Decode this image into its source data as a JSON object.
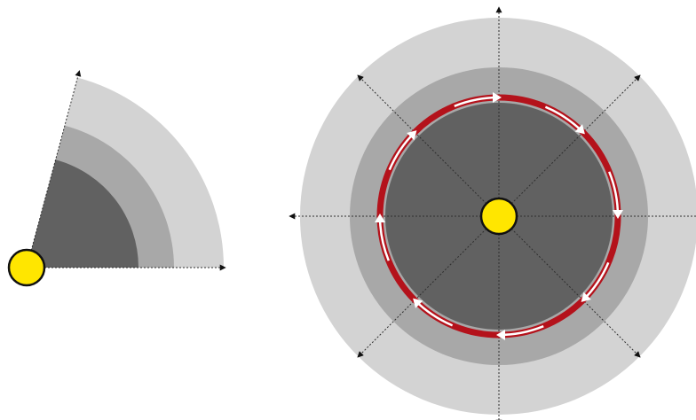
{
  "colors": {
    "background": "#ffffff",
    "outer_zone": "#d3d3d3",
    "middle_zone": "#a8a8a8",
    "inner_zone": "#616161",
    "guide_lines": "#2f2f2f",
    "sun_fill": "#ffe600",
    "sun_stroke": "#111111",
    "orbit_band": "#b4121b",
    "orbit_arrows": "#ffffff"
  },
  "sector": {
    "angle_degrees": 75,
    "zones": [
      "outer_zone",
      "middle_zone",
      "inner_zone"
    ],
    "center_marker": "sun"
  },
  "disc": {
    "zones": [
      "outer_zone",
      "middle_zone",
      "inner_zone"
    ],
    "radial_axes": 8,
    "center_marker": "sun",
    "orbit": {
      "direction": "clockwise",
      "arrow_count": 8
    }
  }
}
